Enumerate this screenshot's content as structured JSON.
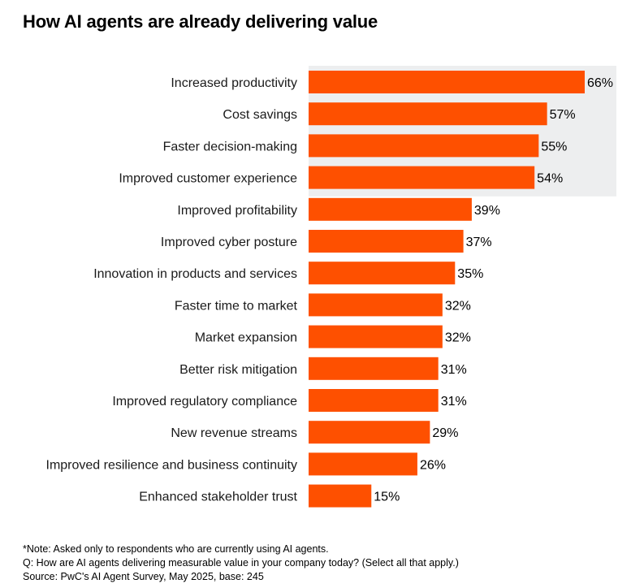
{
  "title": "How AI agents are already delivering value",
  "notes": {
    "note": "*Note: Asked only to respondents who are currently using AI agents.",
    "question": "Q: How are AI agents delivering measurable value in your company today? (Select all that apply.)",
    "source": "Source: PwC's AI Agent Survey, May 2025, base: 245"
  },
  "colors": {
    "bar": "#fe5000",
    "highlight_band": "#edeeef"
  },
  "chart_data": {
    "type": "bar",
    "orientation": "horizontal",
    "title": "How AI agents are already delivering value",
    "xlabel": "",
    "ylabel": "",
    "xlim": [
      0,
      66
    ],
    "highlighted_categories": 4,
    "categories": [
      "Increased productivity",
      "Cost savings",
      "Faster decision-making",
      "Improved customer experience",
      "Improved profitability",
      "Improved cyber posture",
      "Innovation in products and services",
      "Faster time to market",
      "Market expansion",
      "Better risk mitigation",
      "Improved regulatory compliance",
      "New revenue streams",
      "Improved resilience and business continuity",
      "Enhanced stakeholder trust"
    ],
    "values": [
      66,
      57,
      55,
      54,
      39,
      37,
      35,
      32,
      32,
      31,
      31,
      29,
      26,
      15
    ],
    "value_labels": [
      "66%",
      "57%",
      "55%",
      "54%",
      "39%",
      "37%",
      "35%",
      "32%",
      "32%",
      "31%",
      "31%",
      "29%",
      "26%",
      "15%"
    ]
  }
}
